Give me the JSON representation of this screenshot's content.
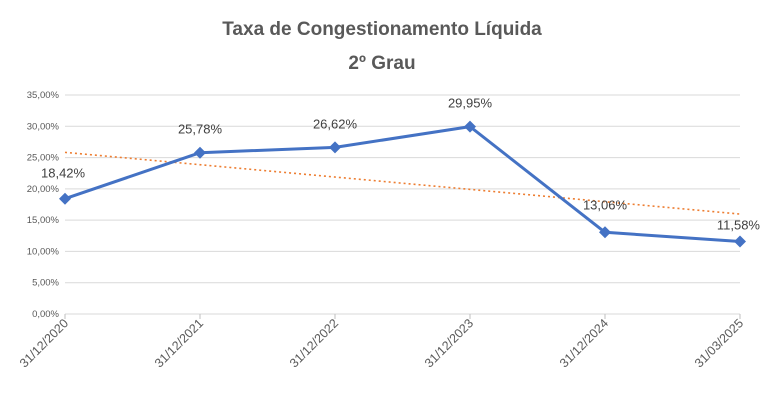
{
  "chart_data": {
    "type": "line",
    "title": "Taxa de Congestionamento Líquida",
    "subtitle": "2º Grau",
    "xlabel": "",
    "ylabel": "",
    "categories": [
      "31/12/2020",
      "31/12/2021",
      "31/12/2022",
      "31/12/2023",
      "31/12/2024",
      "31/03/2025"
    ],
    "series": [
      {
        "values": [
          18.42,
          25.78,
          26.62,
          29.95,
          13.06,
          11.58
        ],
        "data_labels": [
          "18,42%",
          "25,78%",
          "26,62%",
          "29,95%",
          "13,06%",
          "11,58%"
        ],
        "color": "#4472C4",
        "marker": "diamond"
      }
    ],
    "trendline": {
      "type": "linear",
      "color": "#ED7D31",
      "style": "dotted"
    },
    "ylim": [
      0,
      35
    ],
    "yticks": [
      0,
      5,
      10,
      15,
      20,
      25,
      30,
      35
    ],
    "ytick_labels": [
      "0,00%",
      "5,00%",
      "10,00%",
      "15,00%",
      "20,00%",
      "25,00%",
      "30,00%",
      "35,00%"
    ],
    "grid": true,
    "gridline_color": "#D9D9D9"
  }
}
